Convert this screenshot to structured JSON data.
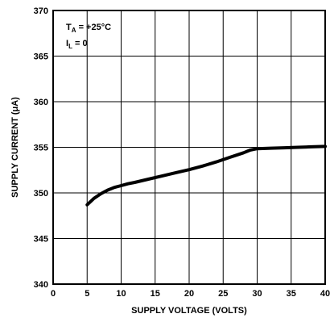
{
  "chart_data": {
    "type": "line",
    "xlabel": "SUPPLY VOLTAGE (VOLTS)",
    "ylabel": "SUPPLY CURRENT (μA)",
    "xlim": [
      0,
      40
    ],
    "ylim": [
      340,
      370
    ],
    "x_ticks": [
      "0",
      "5",
      "10",
      "15",
      "20",
      "25",
      "30",
      "35",
      "40"
    ],
    "y_ticks": [
      "340",
      "345",
      "350",
      "355",
      "360",
      "365",
      "370"
    ],
    "grid": true,
    "annotations": [
      {
        "main": "T",
        "sub": "A",
        "rest": " = +25°C"
      },
      {
        "main": "I",
        "sub": "L",
        "rest": " = 0"
      }
    ],
    "series": [
      {
        "x": [
          5,
          6,
          7,
          8,
          9,
          10,
          11,
          12,
          14,
          16,
          18,
          20,
          22,
          24,
          26,
          28,
          29,
          30,
          32,
          34,
          36,
          38,
          40
        ],
        "y": [
          348.7,
          349.4,
          349.9,
          350.3,
          350.6,
          350.8,
          351.0,
          351.15,
          351.5,
          351.85,
          352.2,
          352.55,
          352.95,
          353.4,
          353.9,
          354.4,
          354.7,
          354.85,
          354.9,
          354.95,
          355.0,
          355.05,
          355.1
        ]
      }
    ]
  }
}
